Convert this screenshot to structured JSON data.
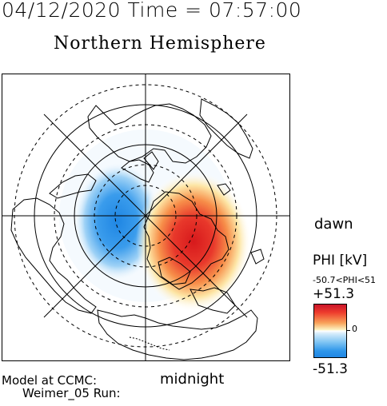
{
  "header": {
    "date_time": "04/12/2020 Time = 07:57:00"
  },
  "map": {
    "title": "Northern Hemisphere",
    "labels": {
      "dawn": "dawn",
      "midnight": "midnight"
    },
    "projection": "polar",
    "grid": "dashed latitude circles, meridians every 45°"
  },
  "credit": {
    "line1": "Model at CCMC:",
    "line2": "Weimer_05 Run:"
  },
  "colorbar": {
    "title": "PHI [kV]",
    "range_text": "-50.7<PHI<51",
    "max_label": "+51.3",
    "zero_label": "0",
    "min_label": "-51.3",
    "colors": {
      "positive": "#d7191c",
      "zero": "#ffffff",
      "negative": "#1f86e3"
    }
  }
}
